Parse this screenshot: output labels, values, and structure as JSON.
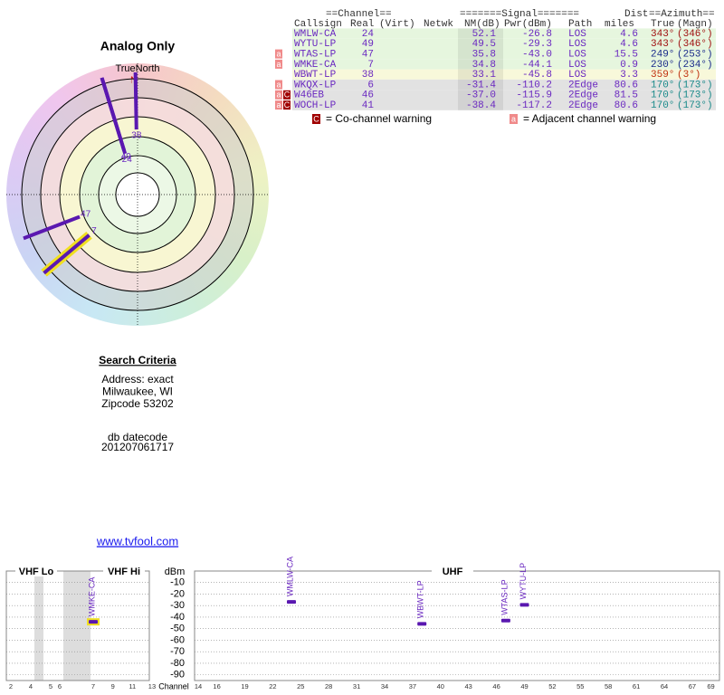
{
  "radar": {
    "title": "Analog Only",
    "north_label": "TrueNorth",
    "north_mark": "N"
  },
  "table": {
    "header_top": [
      "==Channel==",
      "=======Signal=======",
      "Dist",
      "==Azimuth=="
    ],
    "header": [
      "Callsign",
      "Real",
      "(Virt)",
      "Netwk",
      "NM(dB)",
      "Pwr(dBm)",
      "Path",
      "miles",
      "True",
      "(Magn)"
    ],
    "rows": [
      {
        "flags": [],
        "callsign": "WMLW-CA",
        "real": 24,
        "nm": 52.1,
        "pwr": -26.8,
        "path": "LOS",
        "miles": 4.6,
        "true": {
          "value": 343,
          "label": "343°"
        },
        "magn": "(346°)",
        "az_color": "#a01010",
        "bg": "#e6f6de"
      },
      {
        "flags": [],
        "callsign": "WYTU-LP",
        "real": 49,
        "nm": 49.5,
        "pwr": -29.3,
        "path": "LOS",
        "miles": 4.6,
        "true": {
          "value": 343,
          "label": "343°"
        },
        "magn": "(346°)",
        "az_color": "#a01010",
        "bg": "#e6f6de"
      },
      {
        "flags": [
          "a"
        ],
        "callsign": "WTAS-LP",
        "real": 47,
        "nm": 35.8,
        "pwr": {
          "value": -43,
          "label": "-43.0"
        },
        "path": "LOS",
        "miles": 15.5,
        "true": {
          "value": 249,
          "label": "249°"
        },
        "magn": "(253°)",
        "az_color": "#1a2a8a",
        "bg": "#e6f6de"
      },
      {
        "flags": [
          "a"
        ],
        "callsign": "WMKE-CA",
        "real": 7,
        "nm": 34.8,
        "pwr": -44.1,
        "path": "LOS",
        "miles": 0.9,
        "true": {
          "value": 230,
          "label": "230°"
        },
        "magn": "(234°)",
        "az_color": "#1a2a8a",
        "bg": "#e6f6de",
        "highlight": true
      },
      {
        "flags": [],
        "callsign": "WBWT-LP",
        "real": 38,
        "nm": 33.1,
        "pwr": -45.8,
        "path": "LOS",
        "miles": 3.3,
        "true": {
          "value": 359,
          "label": "359°"
        },
        "magn": "(3°)",
        "az_color": "#c03010",
        "bg": "#f8f8da"
      },
      {
        "flags": [
          "a"
        ],
        "callsign": "WKQX-LP",
        "real": 6,
        "nm": -31.4,
        "pwr": -110.2,
        "path": "2Edge",
        "miles": 80.6,
        "true": {
          "value": 170,
          "label": "170°"
        },
        "magn": "(173°)",
        "az_color": "#1a8a8a",
        "bg": "#e2e2e2"
      },
      {
        "flags": [
          "a",
          "C"
        ],
        "callsign": "W46EB",
        "real": 46,
        "nm": {
          "value": -37,
          "label": "-37.0"
        },
        "pwr": -115.9,
        "path": "2Edge",
        "miles": 81.5,
        "true": {
          "value": 170,
          "label": "170°"
        },
        "magn": "(173°)",
        "az_color": "#1a8a8a",
        "bg": "#e2e2e2"
      },
      {
        "flags": [
          "a",
          "C"
        ],
        "callsign": "WOCH-LP",
        "real": 41,
        "nm": -38.4,
        "pwr": -117.2,
        "path": "2Edge",
        "miles": 80.6,
        "true": {
          "value": 170,
          "label": "170°"
        },
        "magn": "(173°)",
        "az_color": "#1a8a8a",
        "bg": "#e2e2e2"
      }
    ]
  },
  "legend": {
    "co_icon": "C",
    "co_text": "= Co-channel warning",
    "adj_icon": "a",
    "adj_text": "= Adjacent channel warning"
  },
  "search": {
    "title": "Search Criteria",
    "lines": [
      "Address: exact",
      "Milwaukee, WI",
      "Zipcode 53202"
    ],
    "datecode_label": "db datecode",
    "datecode": "201207061717"
  },
  "link": "www.tvfool.com",
  "spectrum": {
    "y_label": "dBm",
    "ylim": [
      0,
      -95
    ],
    "yticks": [
      -10,
      -20,
      -30,
      -40,
      -50,
      -60,
      -70,
      -80,
      -90
    ],
    "bands": [
      "VHF Lo",
      "VHF Hi",
      "UHF"
    ],
    "x_label": "Channel",
    "vhf_ticks": [
      2,
      4,
      5,
      6,
      7,
      9,
      11,
      13
    ],
    "uhf_ticks": [
      14,
      16,
      19,
      22,
      25,
      28,
      31,
      34,
      37,
      40,
      43,
      46,
      49,
      52,
      55,
      58,
      61,
      64,
      67,
      69
    ],
    "bar_color": "#5a18b0",
    "grid": true
  }
}
